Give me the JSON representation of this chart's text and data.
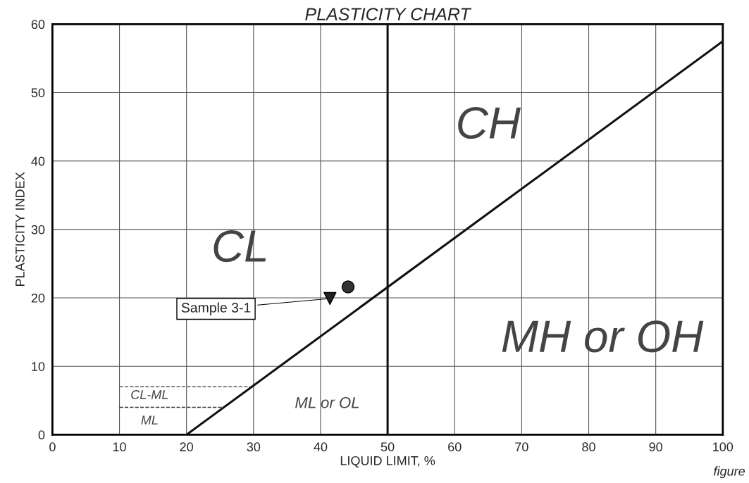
{
  "chart_data": {
    "type": "scatter",
    "title": "PLASTICITY CHART",
    "xlabel": "LIQUID LIMIT, %",
    "ylabel": "PLASTICITY INDEX",
    "xlim": [
      0,
      100
    ],
    "ylim": [
      0,
      60
    ],
    "xticks": [
      0,
      10,
      20,
      30,
      40,
      50,
      60,
      70,
      80,
      90,
      100
    ],
    "yticks": [
      0,
      10,
      20,
      30,
      40,
      50,
      60
    ],
    "grid": true,
    "series": [
      {
        "type": "line",
        "color": "#111111",
        "x": [
          20,
          100
        ],
        "values": [
          0,
          57.5
        ],
        "marker": "none",
        "line_style": "solid"
      },
      {
        "type": "line",
        "color": "#333333",
        "x": [
          10,
          29.6
        ],
        "values": [
          7,
          7
        ],
        "marker": "none",
        "line_style": "dashed"
      },
      {
        "type": "line",
        "color": "#333333",
        "x": [
          10,
          25.5
        ],
        "values": [
          4,
          4
        ],
        "marker": "none",
        "line_style": "dashed"
      },
      {
        "color": "#222222",
        "x": [
          41.4
        ],
        "values": [
          19.9
        ],
        "marker": "triangle"
      },
      {
        "color": "#333333",
        "x": [
          44.1
        ],
        "values": [
          21.6
        ],
        "marker": "circle"
      }
    ],
    "ref_lines": [
      {
        "axis": "x",
        "value": 50,
        "color": "#111111",
        "line_style": "solid"
      }
    ],
    "annotations": [
      {
        "text": "Sample 3-1",
        "x": 41.4,
        "y": 19.9
      },
      "CL",
      "CH",
      "MH or OH",
      "ML or OL",
      "CL-ML",
      "ML",
      "figure"
    ]
  }
}
